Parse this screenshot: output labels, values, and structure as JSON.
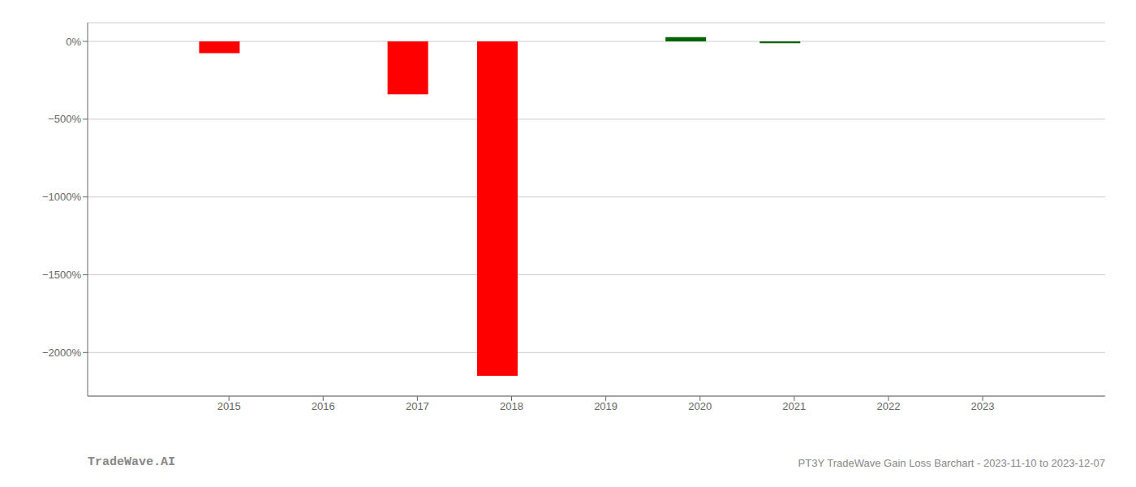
{
  "chart_data": {
    "type": "bar",
    "x": [
      2014.9,
      2016.9,
      2017.85,
      2019.85,
      2020.85
    ],
    "values": [
      -75,
      -340,
      -2150,
      28,
      -12
    ],
    "colors": [
      "#ff0000",
      "#ff0000",
      "#ff0000",
      "#006400",
      "#006400"
    ],
    "xlim": [
      2013.5,
      2024.3
    ],
    "ylim": [
      -2280,
      120
    ],
    "xticks": [
      2015,
      2016,
      2017,
      2018,
      2019,
      2020,
      2021,
      2022,
      2023
    ],
    "yticks": [
      {
        "value": 0,
        "label": "0%"
      },
      {
        "value": -500,
        "label": "−500%"
      },
      {
        "value": -1000,
        "label": "−1000%"
      },
      {
        "value": -1500,
        "label": "−1500%"
      },
      {
        "value": -2000,
        "label": "−2000%"
      }
    ],
    "grid": true,
    "annotations": [
      "TradeWave.AI",
      "PT3Y TradeWave Gain Loss Barchart - 2023-11-10 to 2023-12-07"
    ]
  }
}
